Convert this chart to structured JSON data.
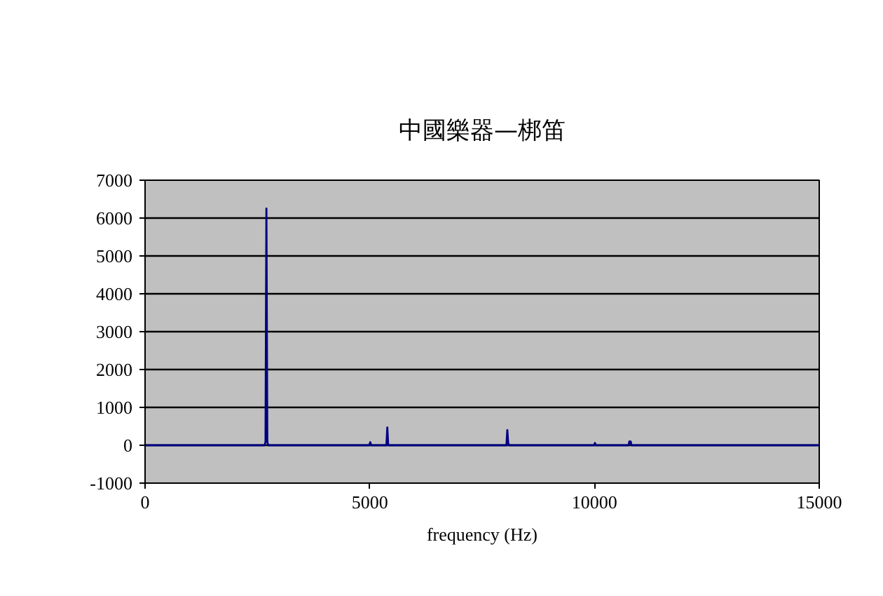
{
  "chart_data": {
    "type": "line",
    "title": "中國樂器—梆笛",
    "xlabel": "frequency (Hz)",
    "x": [
      0,
      2660,
      2680,
      2700,
      2720,
      2740,
      4990,
      5010,
      5030,
      5370,
      5390,
      5410,
      8040,
      8060,
      8080,
      8100,
      9990,
      10010,
      10030,
      10760,
      10775,
      10790,
      10805,
      10820,
      15000
    ],
    "series": [
      {
        "color": "#000080",
        "values": [
          0,
          0,
          90,
          6250,
          90,
          0,
          0,
          80,
          0,
          0,
          470,
          0,
          0,
          400,
          60,
          0,
          0,
          60,
          0,
          0,
          100,
          100,
          100,
          0,
          0
        ]
      }
    ],
    "xlim": [
      0,
      15000
    ],
    "ylim": [
      -1000,
      7000
    ],
    "xticks": [
      0,
      5000,
      10000,
      15000
    ],
    "yticks": [
      -1000,
      0,
      1000,
      2000,
      3000,
      4000,
      5000,
      6000,
      7000
    ],
    "grid": "y",
    "marker": "none",
    "line_style": "solid"
  }
}
